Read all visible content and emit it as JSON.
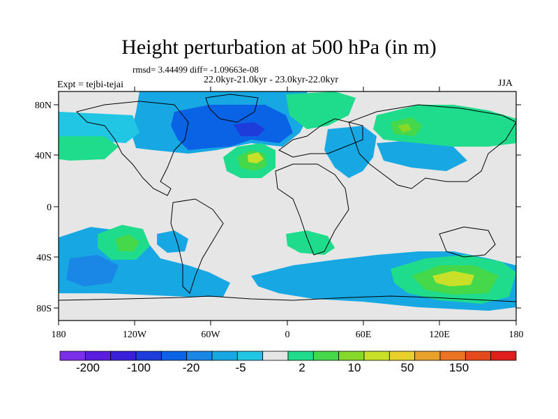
{
  "map": {
    "title": "Height perturbation at 500 hPa (in m)",
    "stats": "rmsd= 3.44499 diff= -1.09663e-08",
    "expt": "Expt = tejbi-tejai",
    "period": "22.0kyr-21.0kyr - 23.0kyr-22.0kyr",
    "season": "JJA",
    "lat_ticks": [
      "80N",
      "40N",
      "0",
      "40S",
      "80S"
    ],
    "lon_ticks": [
      "180",
      "120W",
      "60W",
      "0",
      "60E",
      "120E",
      "180"
    ]
  },
  "colorbar": {
    "labels": [
      "-200",
      "-100",
      "-20",
      "-5",
      "2",
      "10",
      "50",
      "150"
    ],
    "colors": [
      "#7b2fe8",
      "#5b1ee0",
      "#3a20d8",
      "#1e3cd9",
      "#0a63e4",
      "#1a86e6",
      "#17a8e3",
      "#20c6e4",
      "#e6e6e6",
      "#1edc8c",
      "#45d84a",
      "#87d82a",
      "#c8e028",
      "#e8d12a",
      "#e8a12a",
      "#e87424",
      "#e54a1c",
      "#e01e1e"
    ]
  },
  "colors": {
    "background": "#e6e6e6",
    "neg1": "#17a8e3",
    "neg2": "#20c6e4",
    "neg3": "#0a63e4",
    "pos1": "#1edc8c",
    "pos2": "#45d84a",
    "pos3": "#c8e028",
    "coast": "#000000"
  }
}
